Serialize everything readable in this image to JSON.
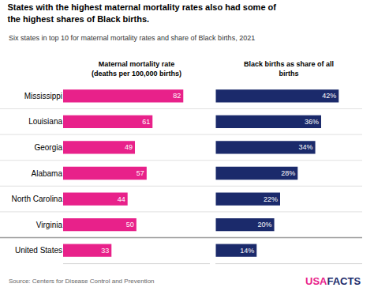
{
  "title": "States with the highest maternal mortality rates also had some of\nthe highest shares of Black births.",
  "subtitle": "Six states in top 10 for maternal mortality rates and share of Black births, 2021",
  "annotations": [
    {
      "text": "Source: Centers for Disease Control and Prevention"
    },
    {
      "text": "USA",
      "color": "#E8218A"
    },
    {
      "text": "FACTS",
      "color": "#1B2A6B"
    }
  ],
  "chart_data": [
    {
      "type": "bar",
      "orientation": "horizontal",
      "title": "Maternal mortality rate\n(deaths per 100,000 births)",
      "categories": [
        "Mississippi",
        "Louisiana",
        "Georgia",
        "Alabama",
        "North Carolina",
        "Virginia",
        "United States"
      ],
      "values": [
        82,
        61,
        49,
        57,
        44,
        50,
        33
      ],
      "color": "#E8218A",
      "xlim": [
        0,
        100
      ],
      "data_labels": true,
      "tick_labels": "y",
      "grid": false
    },
    {
      "type": "bar",
      "orientation": "horizontal",
      "title": "Black births as share of all\nbirths",
      "categories": [
        "Mississippi",
        "Louisiana",
        "Georgia",
        "Alabama",
        "North Carolina",
        "Virginia",
        "United States"
      ],
      "values": [
        42,
        36,
        34,
        28,
        22,
        20,
        14
      ],
      "value_labels": [
        "42%",
        "36%",
        "34%",
        "28%",
        "22%",
        "20%",
        "14%"
      ],
      "color": "#1B2A6B",
      "xlim": [
        0,
        50
      ],
      "data_labels": true,
      "tick_labels": false,
      "grid": false
    }
  ]
}
